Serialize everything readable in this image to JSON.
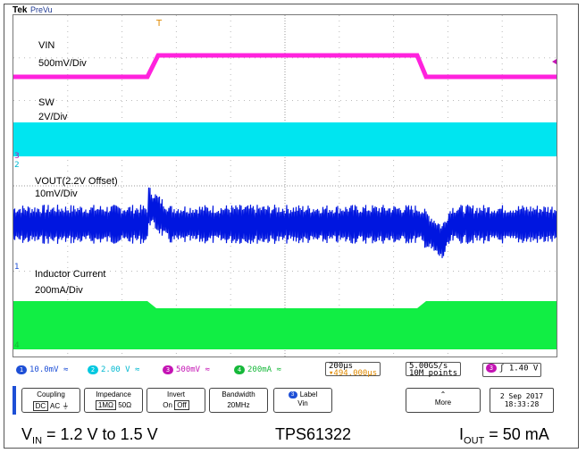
{
  "scope": {
    "brand": "Tek",
    "mode": "PreVu"
  },
  "channels": {
    "vin": {
      "name": "VIN",
      "scale": "500mV/Div",
      "color": "#ff22dd"
    },
    "sw": {
      "name": "SW",
      "scale": "2V/Div",
      "color": "#00e5f0"
    },
    "vout": {
      "name": "VOUT(2.2V Offset)",
      "scale": "10mV/Div",
      "color": "#0016e0"
    },
    "il": {
      "name": "Inductor Current",
      "scale": "200mA/Div",
      "color": "#11ee44"
    }
  },
  "markers": {
    "trigger": "T",
    "ch1": "1",
    "ch2": "2",
    "ch3": "3",
    "ch4": "4"
  },
  "status": {
    "ch1": {
      "num": "1",
      "value": "10.0mV",
      "bw": "≈",
      "color": "#1d4fd6"
    },
    "ch2": {
      "num": "2",
      "value": "2.00 V",
      "bw": "≈",
      "color": "#00c8e0"
    },
    "ch3": {
      "num": "3",
      "value": "500mV",
      "bw": "≈",
      "color": "#c414b4"
    },
    "ch4": {
      "num": "4",
      "value": "200mA",
      "bw": "≈",
      "color": "#16b83a"
    },
    "timebase": "200µs",
    "trigger_pos": "▾494.000µs",
    "sample_rate": "5.00GS/s",
    "record_length": "10M points",
    "trigger_source": "3",
    "trigger_slope": "ʃ",
    "trigger_level": "1.40 V"
  },
  "menu": {
    "coupling": {
      "title": "Coupling",
      "opt1": "DC",
      "opt2": "AC",
      "opt3": "⏚"
    },
    "impedance": {
      "title": "Impedance",
      "opt1": "1MΩ",
      "opt2": "50Ω"
    },
    "invert": {
      "title": "Invert",
      "opt1": "On",
      "opt2": "Off"
    },
    "bandwidth": {
      "title": "Bandwidth",
      "value": "20MHz"
    },
    "label": {
      "title": "Label",
      "value": "Vin",
      "num": "3"
    },
    "more": {
      "title": "More"
    },
    "date": "2 Sep  2017",
    "time": "18:33:28"
  },
  "caption": {
    "vin_prefix": "V",
    "vin_sub": "IN",
    "vin_text": " = 1.2 V to 1.5 V",
    "part": "TPS61322",
    "iout_prefix": "I",
    "iout_sub": "OUT",
    "iout_text": " = 50 mA"
  }
}
